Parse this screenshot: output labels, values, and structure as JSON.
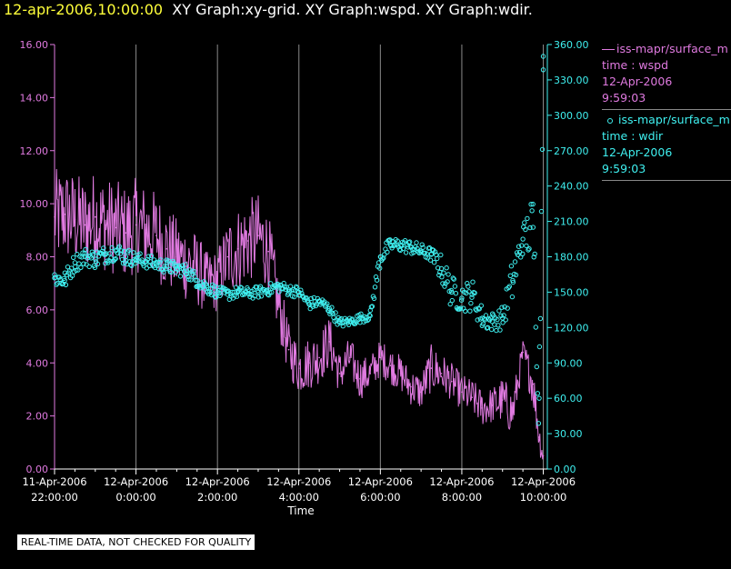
{
  "header": {
    "timestamp": "12-apr-2006,10:00:00",
    "graphs": "XY Graph:xy-grid.  XY Graph:wspd.  XY Graph:wdir."
  },
  "legend": [
    {
      "symbol": "line",
      "color": "#e07ae0",
      "lines": [
        "iss-mapr/surface_m",
        "time : wspd",
        "12-Apr-2006",
        "9:59:03"
      ]
    },
    {
      "symbol": "circle",
      "color": "#3ff0f0",
      "lines": [
        "iss-mapr/surface_m",
        "time : wdir",
        "12-Apr-2006",
        "9:59:03"
      ]
    }
  ],
  "note": "REAL-TIME DATA, NOT CHECKED FOR QUALITY",
  "chart_data": {
    "type": "line",
    "xlabel": "Time",
    "x_range_hours": [
      -2.0,
      10.1
    ],
    "x_ticks": [
      {
        "h": -2,
        "line1": "11-Apr-2006",
        "line2": "22:00:00"
      },
      {
        "h": 0,
        "line1": "12-Apr-2006",
        "line2": "0:00:00"
      },
      {
        "h": 2,
        "line1": "12-Apr-2006",
        "line2": "2:00:00"
      },
      {
        "h": 4,
        "line1": "12-Apr-2006",
        "line2": "4:00:00"
      },
      {
        "h": 6,
        "line1": "12-Apr-2006",
        "line2": "6:00:00"
      },
      {
        "h": 8,
        "line1": "12-Apr-2006",
        "line2": "8:00:00"
      },
      {
        "h": 10,
        "line1": "12-Apr-2006",
        "line2": "10:00:00"
      }
    ],
    "left_axis": {
      "range": [
        0,
        16
      ],
      "ticks": [
        "0.00",
        "2.00",
        "4.00",
        "6.00",
        "8.00",
        "10.00",
        "12.00",
        "14.00",
        "16.00"
      ],
      "color": "#e07ae0"
    },
    "right_axis": {
      "range": [
        0,
        360
      ],
      "ticks": [
        "0.00",
        "30.00",
        "60.00",
        "90.00",
        "120.00",
        "150.00",
        "180.00",
        "210.00",
        "240.00",
        "270.00",
        "300.00",
        "330.00",
        "360.00"
      ],
      "color": "#3ff0f0"
    },
    "grid": "vertical",
    "series": [
      {
        "name": "iss-mapr/surface_m time : wspd",
        "style": "line",
        "color": "#e07ae0",
        "axis": "left",
        "x": [
          -2.0,
          -1.75,
          -1.5,
          -1.25,
          -1.0,
          -0.75,
          -0.5,
          -0.25,
          0.0,
          0.25,
          0.5,
          0.75,
          1.0,
          1.25,
          1.5,
          1.75,
          2.0,
          2.25,
          2.5,
          2.75,
          3.0,
          3.25,
          3.5,
          3.75,
          4.0,
          4.25,
          4.5,
          4.75,
          5.0,
          5.25,
          5.5,
          5.75,
          6.0,
          6.25,
          6.5,
          6.75,
          7.0,
          7.25,
          7.5,
          7.75,
          8.0,
          8.25,
          8.5,
          8.75,
          9.0,
          9.25,
          9.5,
          9.75,
          9.9,
          10.0
        ],
        "y": [
          9.5,
          9.6,
          9.4,
          9.2,
          9.5,
          9.2,
          9.1,
          8.9,
          9.2,
          9.0,
          8.8,
          8.3,
          8.0,
          7.8,
          7.5,
          7.0,
          7.1,
          8.0,
          8.3,
          8.6,
          8.8,
          8.2,
          6.2,
          4.5,
          3.8,
          4.0,
          4.2,
          4.8,
          3.6,
          4.2,
          3.4,
          3.6,
          4.2,
          3.9,
          3.6,
          3.1,
          2.9,
          3.8,
          3.6,
          3.3,
          2.9,
          2.7,
          2.3,
          2.4,
          2.6,
          2.1,
          4.4,
          3.2,
          1.2,
          0.5
        ],
        "spread": [
          1.8,
          1.8,
          1.8,
          1.8,
          1.8,
          1.8,
          1.8,
          1.8,
          1.8,
          1.7,
          1.7,
          1.6,
          1.5,
          1.5,
          1.4,
          1.2,
          1.2,
          1.5,
          1.6,
          1.6,
          1.6,
          1.5,
          1.2,
          1.0,
          1.0,
          1.0,
          1.0,
          1.0,
          0.8,
          0.8,
          0.8,
          0.7,
          0.7,
          0.7,
          0.7,
          0.7,
          0.7,
          0.9,
          0.8,
          0.7,
          0.7,
          0.7,
          0.7,
          0.7,
          0.9,
          0.9,
          0.5,
          0.9,
          0.6,
          0.5
        ]
      },
      {
        "name": "iss-mapr/surface_m time : wdir",
        "style": "scatter",
        "color": "#3ff0f0",
        "axis": "right",
        "x": [
          -2.0,
          -1.75,
          -1.5,
          -1.25,
          -1.0,
          -0.75,
          -0.5,
          -0.25,
          0.0,
          0.25,
          0.5,
          0.75,
          1.0,
          1.25,
          1.5,
          1.75,
          2.0,
          2.25,
          2.5,
          2.75,
          3.0,
          3.25,
          3.5,
          3.75,
          4.0,
          4.25,
          4.5,
          4.75,
          5.0,
          5.25,
          5.5,
          5.75,
          6.0,
          6.25,
          6.5,
          6.75,
          7.0,
          7.25,
          7.5,
          7.75,
          8.0,
          8.25,
          8.5,
          8.75,
          9.0,
          9.25,
          9.5,
          9.75,
          9.9,
          10.0
        ],
        "y": [
          162,
          160,
          175,
          180,
          178,
          182,
          185,
          180,
          178,
          176,
          174,
          172,
          170,
          168,
          160,
          154,
          150,
          148,
          150,
          149,
          150,
          152,
          155,
          152,
          150,
          140,
          142,
          136,
          124,
          125,
          128,
          130,
          180,
          190,
          190,
          188,
          185,
          182,
          170,
          150,
          145,
          148,
          128,
          125,
          128,
          160,
          195,
          205,
          60,
          350
        ],
        "spread": [
          8,
          8,
          8,
          8,
          8,
          8,
          8,
          8,
          6,
          6,
          6,
          6,
          6,
          6,
          6,
          6,
          5,
          5,
          5,
          5,
          5,
          5,
          5,
          5,
          5,
          5,
          5,
          5,
          4,
          4,
          4,
          4,
          8,
          6,
          6,
          6,
          6,
          6,
          12,
          14,
          12,
          14,
          10,
          8,
          10,
          20,
          12,
          30,
          40,
          12
        ]
      }
    ]
  }
}
